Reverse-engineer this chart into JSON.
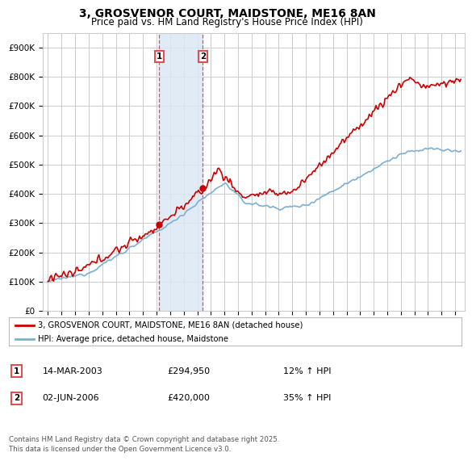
{
  "title": "3, GROSVENOR COURT, MAIDSTONE, ME16 8AN",
  "subtitle": "Price paid vs. HM Land Registry's House Price Index (HPI)",
  "title_fontsize": 10,
  "subtitle_fontsize": 8.5,
  "ylim": [
    0,
    950000
  ],
  "yticks": [
    0,
    100000,
    200000,
    300000,
    400000,
    500000,
    600000,
    700000,
    800000,
    900000
  ],
  "ytick_labels": [
    "£0",
    "£100K",
    "£200K",
    "£300K",
    "£400K",
    "£500K",
    "£600K",
    "£700K",
    "£800K",
    "£900K"
  ],
  "background_color": "#ffffff",
  "plot_background": "#ffffff",
  "grid_color": "#cccccc",
  "red_line_color": "#cc0000",
  "blue_line_color": "#7bafd4",
  "sale1_year": 2003.205,
  "sale2_year": 2006.415,
  "sale1_price": 294950,
  "sale2_price": 420000,
  "shade_color": "#dce8f5",
  "vline_color": "#e05050",
  "legend_line1": "3, GROSVENOR COURT, MAIDSTONE, ME16 8AN (detached house)",
  "legend_line2": "HPI: Average price, detached house, Maidstone",
  "table_rows": [
    {
      "num": "1",
      "date": "14-MAR-2003",
      "price": "£294,950",
      "hpi": "12% ↑ HPI"
    },
    {
      "num": "2",
      "date": "02-JUN-2006",
      "price": "£420,000",
      "hpi": "35% ↑ HPI"
    }
  ],
  "footer": "Contains HM Land Registry data © Crown copyright and database right 2025.\nThis data is licensed under the Open Government Licence v3.0.",
  "x_start_year": 1995,
  "x_end_year": 2025
}
